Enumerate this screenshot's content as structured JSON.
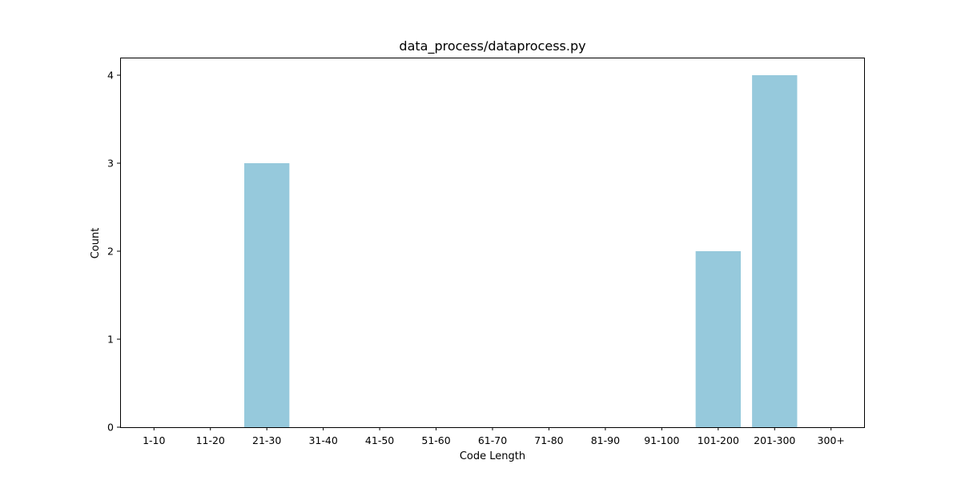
{
  "chart_data": {
    "type": "bar",
    "title": "data_process/dataprocess.py",
    "xlabel": "Code Length",
    "ylabel": "Count",
    "categories": [
      "1-10",
      "11-20",
      "21-30",
      "31-40",
      "41-50",
      "51-60",
      "61-70",
      "71-80",
      "81-90",
      "91-100",
      "101-200",
      "201-300",
      "300+"
    ],
    "values": [
      0,
      0,
      3,
      0,
      0,
      0,
      0,
      0,
      0,
      0,
      2,
      4,
      0
    ],
    "ylim": [
      0,
      4.2
    ],
    "yticks": [
      0,
      1,
      2,
      3,
      4
    ],
    "bar_color": "#96c9dc",
    "grid": false,
    "legend": "none"
  }
}
